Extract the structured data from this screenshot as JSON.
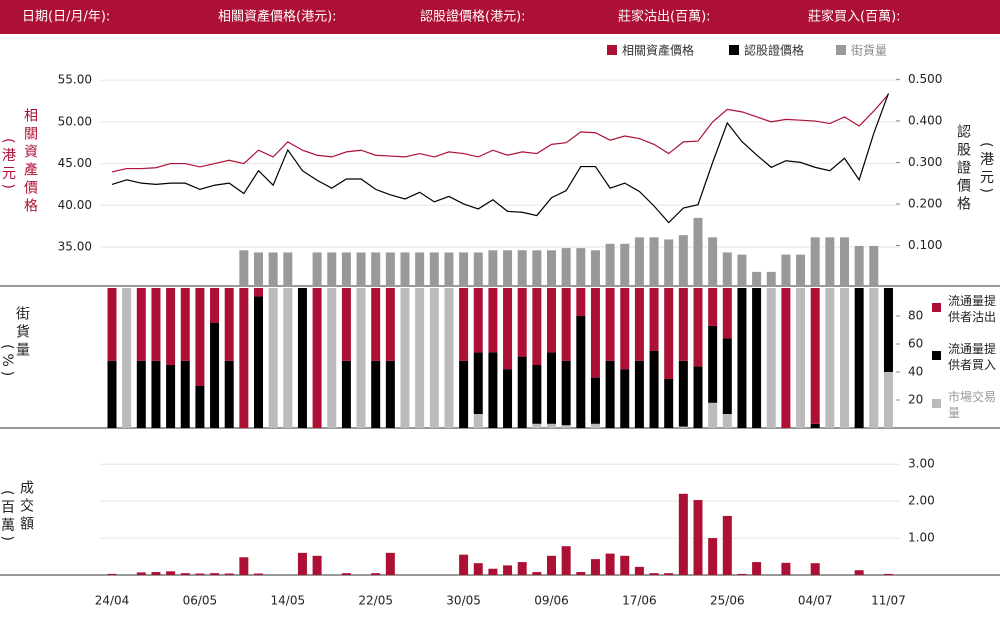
{
  "header": [
    "日期(日/月/年):",
    "相關資產價格(港元):",
    "認股證價格(港元):",
    "莊家沽出(百萬):",
    "莊家買入(百萬):"
  ],
  "chart_data": [
    {
      "type": "line",
      "ylabel": "相關資產價格",
      "ylabel_unit": "(港元)",
      "y2label": "認股證價格",
      "y2label_unit": "(港元)",
      "ylim": [
        30.2,
        56.1
      ],
      "yticks": [
        {
          "value": 35,
          "label": "35.00"
        },
        {
          "value": 40,
          "label": "40.00"
        },
        {
          "value": 45,
          "label": "45.00"
        },
        {
          "value": 50,
          "label": "50.00"
        },
        {
          "value": 55,
          "label": "55.00"
        }
      ],
      "y2lim": [
        0,
        0.52
      ],
      "y2ticks": [
        {
          "value": 0.1,
          "label": "0.100"
        },
        {
          "value": 0.2,
          "label": "0.200"
        },
        {
          "value": 0.3,
          "label": "0.300"
        },
        {
          "value": 0.4,
          "label": "0.400"
        },
        {
          "value": 0.5,
          "label": "0.500"
        }
      ],
      "y3lim": [
        0,
        100
      ],
      "grid": true,
      "series": [
        {
          "name": "相關資產價格",
          "color": "#ad1035",
          "mark": "line",
          "values": [
            44.0,
            44.4,
            44.4,
            44.5,
            45.0,
            45.0,
            44.6,
            45.0,
            45.4,
            45.0,
            46.6,
            45.8,
            47.6,
            46.6,
            46.0,
            45.8,
            46.4,
            46.6,
            46.0,
            45.9,
            45.8,
            46.2,
            45.8,
            46.4,
            46.2,
            45.8,
            46.6,
            46.0,
            46.4,
            46.2,
            47.3,
            47.5,
            48.8,
            48.7,
            47.8,
            48.3,
            48.0,
            47.3,
            46.2,
            47.6,
            47.7,
            50.0,
            51.5,
            51.2,
            50.6,
            50.0,
            50.3,
            50.2,
            50.1,
            49.8,
            50.6,
            49.5,
            51.3,
            53.3
          ]
        },
        {
          "name": "認股證價格",
          "color": "#000000",
          "mark": "line",
          "axis": "y2",
          "values": [
            0.247,
            0.258,
            0.25,
            0.247,
            0.25,
            0.25,
            0.235,
            0.245,
            0.25,
            0.225,
            0.28,
            0.245,
            0.33,
            0.28,
            0.257,
            0.238,
            0.26,
            0.26,
            0.235,
            0.222,
            0.212,
            0.228,
            0.205,
            0.218,
            0.2,
            0.188,
            0.21,
            0.182,
            0.18,
            0.172,
            0.215,
            0.232,
            0.29,
            0.29,
            0.238,
            0.25,
            0.23,
            0.195,
            0.155,
            0.19,
            0.198,
            0.3,
            0.395,
            0.35,
            0.318,
            0.288,
            0.304,
            0.3,
            0.288,
            0.28,
            0.31,
            0.258,
            0.37,
            0.466
          ]
        },
        {
          "name": "街貨量",
          "color": "#999999",
          "mark": "bar",
          "axis": "y3",
          "values": [
            0,
            0,
            0,
            0,
            0,
            0,
            0,
            0,
            0,
            17,
            16,
            16,
            16,
            0,
            16,
            16,
            16,
            16,
            16,
            16,
            16,
            16,
            16,
            16,
            16,
            16,
            17,
            17,
            17,
            17,
            17,
            18,
            18,
            17,
            20,
            20,
            23,
            23,
            22,
            24,
            32,
            23,
            16,
            15,
            7,
            7,
            15,
            15,
            23,
            23,
            23,
            19,
            19,
            0
          ]
        }
      ]
    },
    {
      "type": "stacked_bar",
      "ylabel": "街貨量",
      "ylabel_unit": "(%)",
      "ylim": [
        0,
        100
      ],
      "yticks": [
        20,
        40,
        60,
        80
      ],
      "series": [
        {
          "name": "流通量提供者沽出",
          "color": "#ad1035",
          "values": [
            52,
            0,
            52,
            52,
            55,
            52,
            70,
            25,
            52,
            100,
            6,
            0,
            0,
            0,
            100,
            0,
            52,
            0,
            52,
            52,
            0,
            0,
            0,
            0,
            52,
            46,
            46,
            58,
            49,
            55,
            46,
            52,
            20,
            64,
            52,
            58,
            52,
            45,
            65,
            52,
            56,
            27,
            36,
            0,
            0,
            0,
            100,
            0,
            97,
            0,
            0,
            0,
            0,
            0
          ]
        },
        {
          "name": "流通量提供者買入",
          "color": "#000000",
          "values": [
            48,
            0,
            48,
            48,
            45,
            48,
            30,
            75,
            48,
            0,
            94,
            0,
            0,
            100,
            0,
            0,
            48,
            0,
            48,
            48,
            0,
            0,
            0,
            0,
            48,
            44,
            54,
            42,
            51,
            42,
            51,
            46,
            80,
            33,
            48,
            42,
            48,
            55,
            35,
            47,
            44,
            55,
            54,
            100,
            100,
            0,
            0,
            0,
            3,
            0,
            0,
            100,
            0,
            60
          ]
        },
        {
          "name": "市場交易量",
          "color": "#bbbbbb",
          "values": [
            0,
            100,
            0,
            0,
            0,
            0,
            0,
            0,
            0,
            0,
            0,
            100,
            100,
            0,
            0,
            100,
            0,
            100,
            0,
            0,
            100,
            100,
            100,
            100,
            0,
            10,
            0,
            0,
            0,
            3,
            3,
            2,
            0,
            3,
            0,
            0,
            0,
            0,
            0,
            1,
            0,
            18,
            10,
            0,
            0,
            100,
            0,
            100,
            0,
            100,
            100,
            0,
            100,
            40
          ]
        }
      ]
    },
    {
      "type": "bar",
      "ylabel": "成交額",
      "ylabel_unit": "(百萬)",
      "ylim": [
        0,
        3.25
      ],
      "yticks": [
        {
          "value": 1,
          "label": "1.00"
        },
        {
          "value": 2,
          "label": "2.00"
        },
        {
          "value": 3,
          "label": "3.00"
        }
      ],
      "grid": true,
      "color": "#ad1035",
      "categories": [
        "24/04",
        null,
        null,
        null,
        null,
        null,
        "06/05",
        null,
        null,
        null,
        null,
        null,
        "14/05",
        null,
        null,
        null,
        null,
        null,
        "22/05",
        null,
        null,
        null,
        null,
        null,
        "30/05",
        null,
        null,
        null,
        null,
        null,
        "09/06",
        null,
        null,
        null,
        null,
        null,
        "17/06",
        null,
        null,
        null,
        null,
        null,
        "25/06",
        null,
        null,
        null,
        null,
        null,
        "04/07",
        null,
        null,
        null,
        null,
        "11/07"
      ],
      "values": [
        0.03,
        0,
        0.07,
        0.08,
        0.1,
        0.05,
        0.04,
        0.05,
        0.04,
        0.48,
        0.04,
        0,
        0,
        0.6,
        0.52,
        0,
        0.05,
        0,
        0.05,
        0.6,
        0,
        0,
        0,
        0,
        0.55,
        0.32,
        0.17,
        0.26,
        0.35,
        0.08,
        0.52,
        0.78,
        0.08,
        0.43,
        0.58,
        0.52,
        0.22,
        0.05,
        0.05,
        2.2,
        2.03,
        1.0,
        1.6,
        0.03,
        0.35,
        0,
        0.33,
        0,
        0.32,
        0,
        0,
        0.13,
        0,
        0.03
      ]
    }
  ]
}
